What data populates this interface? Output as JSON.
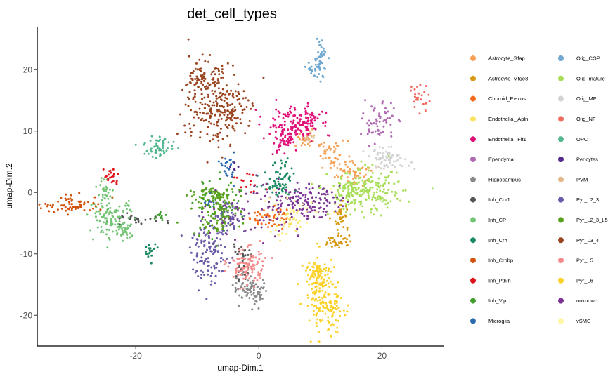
{
  "chart_data": {
    "type": "scatter",
    "title": "det_cell_types",
    "xlabel": "umap-Dim.1",
    "ylabel": "umap-Dim.2",
    "xlim": [
      -36,
      30
    ],
    "ylim": [
      -25,
      27
    ],
    "x_ticks": [
      -20,
      0,
      20
    ],
    "y_ticks": [
      -20,
      -10,
      0,
      10,
      20
    ],
    "grid": false,
    "legend_position": "right",
    "series": [
      {
        "name": "Astrocyte_Gfap",
        "color": "#F4A259",
        "clusters": [
          [
            7.5,
            8.5,
            1.2,
            0.6,
            30
          ],
          [
            12,
            6,
            1.2,
            1.2,
            50
          ],
          [
            15.5,
            3,
            1.5,
            1,
            50
          ]
        ]
      },
      {
        "name": "Astrocyte_Mfge8",
        "color": "#D69A14",
        "clusters": [
          [
            13.5,
            -4,
            0.6,
            1.5,
            35
          ],
          [
            13,
            -8,
            1.2,
            0.5,
            30
          ]
        ]
      },
      {
        "name": "Choroid_Plexus",
        "color": "#F26B1D",
        "clusters": [
          [
            1.5,
            -4,
            1.5,
            1,
            50
          ]
        ]
      },
      {
        "name": "Endothelial_Apln",
        "color": "#FCE15E",
        "clusters": [
          [
            5,
            -5,
            1.5,
            1.2,
            30
          ]
        ]
      },
      {
        "name": "Endothelial_Flt1",
        "color": "#E0127A",
        "clusters": [
          [
            5.5,
            11,
            2.2,
            1.5,
            110
          ],
          [
            8,
            12,
            1,
            1,
            40
          ],
          [
            4,
            8.5,
            1.5,
            1.5,
            50
          ]
        ]
      },
      {
        "name": "Ependymal",
        "color": "#B06AB3",
        "clusters": [
          [
            19.5,
            11.5,
            1.3,
            1.6,
            60
          ]
        ]
      },
      {
        "name": "Hippocampus",
        "color": "#8A8A8A",
        "clusters": [
          [
            -1.5,
            -15.5,
            1.5,
            1,
            60
          ],
          [
            -0.5,
            -17,
            0.6,
            0.8,
            30
          ]
        ]
      },
      {
        "name": "Inh_Cnr1",
        "color": "#555555",
        "clusters": [
          [
            -20,
            -4.5,
            2.5,
            0.4,
            30
          ],
          [
            -3,
            -10,
            1,
            0.6,
            20
          ],
          [
            -3,
            -13,
            0.6,
            0.6,
            15
          ]
        ]
      },
      {
        "name": "Inh_CP",
        "color": "#74C476",
        "clusters": [
          [
            -24,
            -4,
            1.8,
            1.5,
            90
          ],
          [
            -25,
            0,
            0.6,
            1.2,
            30
          ],
          [
            -22,
            -6,
            1,
            0.8,
            40
          ]
        ]
      },
      {
        "name": "Inh_Crh",
        "color": "#1E8A62",
        "clusters": [
          [
            4,
            3,
            1,
            1.5,
            40
          ],
          [
            2.5,
            1,
            1.3,
            0.8,
            30
          ],
          [
            -17.5,
            -9.5,
            0.5,
            0.6,
            20
          ]
        ]
      },
      {
        "name": "Inh_Crhbp",
        "color": "#D2520E",
        "clusters": [
          [
            -30,
            -2,
            2.5,
            0.7,
            70
          ]
        ]
      },
      {
        "name": "Inh_Pthlh",
        "color": "#E0151C",
        "clusters": [
          [
            -24,
            2.5,
            0.6,
            0.8,
            20
          ],
          [
            -2,
            1.5,
            1.5,
            1,
            15
          ]
        ]
      },
      {
        "name": "Inh_Vip",
        "color": "#41A030",
        "clusters": [
          [
            -16,
            -4,
            0.6,
            0.6,
            15
          ],
          [
            -6,
            -2,
            2,
            2,
            40
          ]
        ]
      },
      {
        "name": "Microglia",
        "color": "#2B6BB0",
        "clusters": [
          [
            -5,
            4,
            0.5,
            1.2,
            25
          ],
          [
            -8,
            -1,
            0.5,
            0.8,
            10
          ]
        ]
      },
      {
        "name": "Olig_COP",
        "color": "#6FA8D0",
        "clusters": [
          [
            10,
            22,
            0.5,
            1.6,
            40
          ],
          [
            9,
            20,
            0.8,
            0.6,
            20
          ]
        ]
      },
      {
        "name": "Olig_mature",
        "color": "#A8DE58",
        "clusters": [
          [
            17.5,
            0,
            3,
            1.8,
            200
          ],
          [
            14,
            0,
            1,
            1,
            40
          ]
        ]
      },
      {
        "name": "Olig_MF",
        "color": "#D3D3D3",
        "clusters": [
          [
            21,
            5.5,
            1.8,
            0.8,
            70
          ]
        ]
      },
      {
        "name": "Olig_NF",
        "color": "#F06A5E",
        "clusters": [
          [
            26,
            15.5,
            0.8,
            1.2,
            25
          ]
        ]
      },
      {
        "name": "OPC",
        "color": "#53B88E",
        "clusters": [
          [
            -16,
            7.5,
            1.3,
            1,
            50
          ]
        ]
      },
      {
        "name": "Pericytes",
        "color": "#552B8C",
        "clusters": [
          [
            -4,
            4,
            0.5,
            0.5,
            5
          ]
        ]
      },
      {
        "name": "PVM",
        "color": "#E2B98A",
        "clusters": [
          [
            8,
            9,
            0.5,
            0.4,
            10
          ]
        ]
      },
      {
        "name": "Pyr_L2_3",
        "color": "#6A59A6",
        "clusters": [
          [
            -8,
            -10,
            1.5,
            2.5,
            120
          ],
          [
            -5,
            -4,
            1.5,
            1.5,
            60
          ]
        ]
      },
      {
        "name": "Pyr_L2_3_L5",
        "color": "#58A11B",
        "clusters": [
          [
            -7,
            -3,
            2,
            2,
            110
          ],
          [
            -7,
            0,
            1.5,
            0.5,
            40
          ]
        ]
      },
      {
        "name": "Pyr_L3_4",
        "color": "#9A4520",
        "clusters": [
          [
            -7.5,
            14.5,
            2.5,
            3.5,
            220
          ],
          [
            -9,
            19,
            1,
            1,
            50
          ],
          [
            -4,
            13,
            1.2,
            1.2,
            40
          ]
        ]
      },
      {
        "name": "Pyr_L5",
        "color": "#F48C8C",
        "clusters": [
          [
            -2,
            -12,
            1.5,
            1.5,
            110
          ]
        ]
      },
      {
        "name": "Pyr_L6",
        "color": "#FCD12A",
        "clusters": [
          [
            10,
            -16,
            1.2,
            3,
            140
          ],
          [
            12,
            -19,
            0.9,
            1.8,
            60
          ],
          [
            9,
            -13,
            0.8,
            0.8,
            40
          ]
        ]
      },
      {
        "name": "unknown",
        "color": "#7A3393",
        "clusters": [
          [
            7,
            -1.5,
            3,
            1.2,
            140
          ],
          [
            0,
            -3,
            4,
            3,
            60
          ]
        ]
      },
      {
        "name": "vSMC",
        "color": "#FFF6A0",
        "clusters": [
          [
            6,
            -3,
            3,
            1.5,
            30
          ]
        ]
      }
    ]
  }
}
